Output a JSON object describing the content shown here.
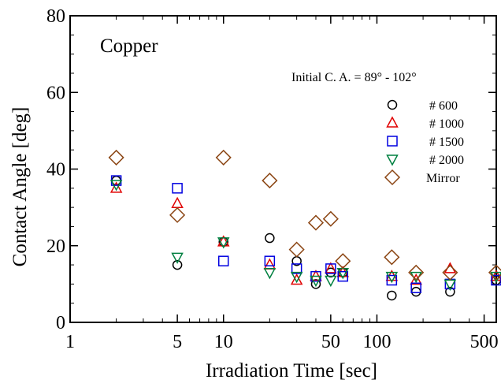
{
  "chart_data": {
    "type": "scatter",
    "title": "Copper",
    "subtitle": "Initial C. A. = 89° - 102°",
    "xlabel": "Irradiation Time [sec]",
    "ylabel": "Contact Angle [deg]",
    "xscale": "log",
    "xlim": [
      1,
      600
    ],
    "ylim": [
      0,
      80
    ],
    "xticks": [
      1,
      5,
      10,
      50,
      100,
      500
    ],
    "xtick_labels": [
      "1",
      "5",
      "10",
      "50",
      "100",
      "500"
    ],
    "yticks": [
      0,
      20,
      40,
      60,
      80
    ],
    "ytick_labels": [
      "0",
      "20",
      "40",
      "60",
      "80"
    ],
    "grid": false,
    "legend_position": "right",
    "series": [
      {
        "name": "# 600",
        "marker": "circle",
        "color": "#000000",
        "points": [
          [
            2,
            37
          ],
          [
            5,
            15
          ],
          [
            10,
            21
          ],
          [
            20,
            22
          ],
          [
            30,
            16
          ],
          [
            40,
            10
          ],
          [
            50,
            13
          ],
          [
            60,
            13
          ],
          [
            125,
            7
          ],
          [
            180,
            8
          ],
          [
            300,
            8
          ],
          [
            600,
            11
          ]
        ]
      },
      {
        "name": "# 1000",
        "marker": "triangle-up",
        "color": "#e00000",
        "points": [
          [
            2,
            35
          ],
          [
            5,
            31
          ],
          [
            10,
            21
          ],
          [
            20,
            15
          ],
          [
            30,
            11
          ],
          [
            40,
            12
          ],
          [
            50,
            14
          ],
          [
            60,
            13
          ],
          [
            125,
            12
          ],
          [
            180,
            11
          ],
          [
            300,
            14
          ],
          [
            600,
            12
          ]
        ]
      },
      {
        "name": "# 1500",
        "marker": "square",
        "color": "#0000e0",
        "points": [
          [
            2,
            37
          ],
          [
            5,
            35
          ],
          [
            10,
            16
          ],
          [
            20,
            16
          ],
          [
            30,
            14
          ],
          [
            40,
            12
          ],
          [
            50,
            14
          ],
          [
            60,
            12
          ],
          [
            125,
            11
          ],
          [
            180,
            9
          ],
          [
            300,
            10
          ],
          [
            600,
            11
          ]
        ]
      },
      {
        "name": "# 2000",
        "marker": "triangle-down",
        "color": "#008040",
        "points": [
          [
            2,
            36
          ],
          [
            5,
            17
          ],
          [
            10,
            21
          ],
          [
            20,
            13
          ],
          [
            30,
            12
          ],
          [
            40,
            11
          ],
          [
            50,
            11
          ],
          [
            60,
            13
          ],
          [
            125,
            12
          ],
          [
            180,
            12
          ],
          [
            300,
            10
          ],
          [
            600,
            12
          ]
        ]
      },
      {
        "name": "Mirror",
        "marker": "diamond",
        "color": "#8b4513",
        "points": [
          [
            2,
            43
          ],
          [
            5,
            28
          ],
          [
            10,
            43
          ],
          [
            20,
            37
          ],
          [
            30,
            19
          ],
          [
            40,
            26
          ],
          [
            50,
            27
          ],
          [
            60,
            16
          ],
          [
            125,
            17
          ],
          [
            180,
            13
          ],
          [
            300,
            13
          ],
          [
            600,
            13
          ]
        ]
      }
    ]
  }
}
